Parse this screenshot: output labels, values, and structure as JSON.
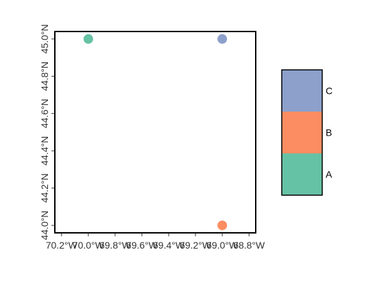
{
  "chart_data": {
    "type": "scatter",
    "title": "",
    "xlabel": "",
    "ylabel": "",
    "xlim": [
      -70.25,
      -68.75
    ],
    "ylim": [
      43.96,
      45.04
    ],
    "x_ticks": [
      {
        "value": -70.2,
        "label": "70.2°W"
      },
      {
        "value": -70.0,
        "label": "70.0°W"
      },
      {
        "value": -69.8,
        "label": "69.8°W"
      },
      {
        "value": -69.6,
        "label": "69.6°W"
      },
      {
        "value": -69.4,
        "label": "69.4°W"
      },
      {
        "value": -69.2,
        "label": "69.2°W"
      },
      {
        "value": -69.0,
        "label": "69.0°W"
      },
      {
        "value": -68.8,
        "label": "68.8°W"
      }
    ],
    "y_ticks": [
      {
        "value": 44.0,
        "label": "44.0°N"
      },
      {
        "value": 44.2,
        "label": "44.2°N"
      },
      {
        "value": 44.4,
        "label": "44.4°N"
      },
      {
        "value": 44.6,
        "label": "44.6°N"
      },
      {
        "value": 44.8,
        "label": "44.8°N"
      },
      {
        "value": 45.0,
        "label": "45.0°N"
      }
    ],
    "points": [
      {
        "lon": -70.0,
        "lat": 45.0,
        "category": "A"
      },
      {
        "lon": -69.0,
        "lat": 45.0,
        "category": "C"
      },
      {
        "lon": -69.0,
        "lat": 44.0,
        "category": "B"
      }
    ],
    "legend": {
      "placement": "right",
      "entries": [
        {
          "label": "C",
          "color": "#8DA0CB"
        },
        {
          "label": "B",
          "color": "#FC8D62"
        },
        {
          "label": "A",
          "color": "#66C2A5"
        }
      ]
    },
    "grid": false
  }
}
